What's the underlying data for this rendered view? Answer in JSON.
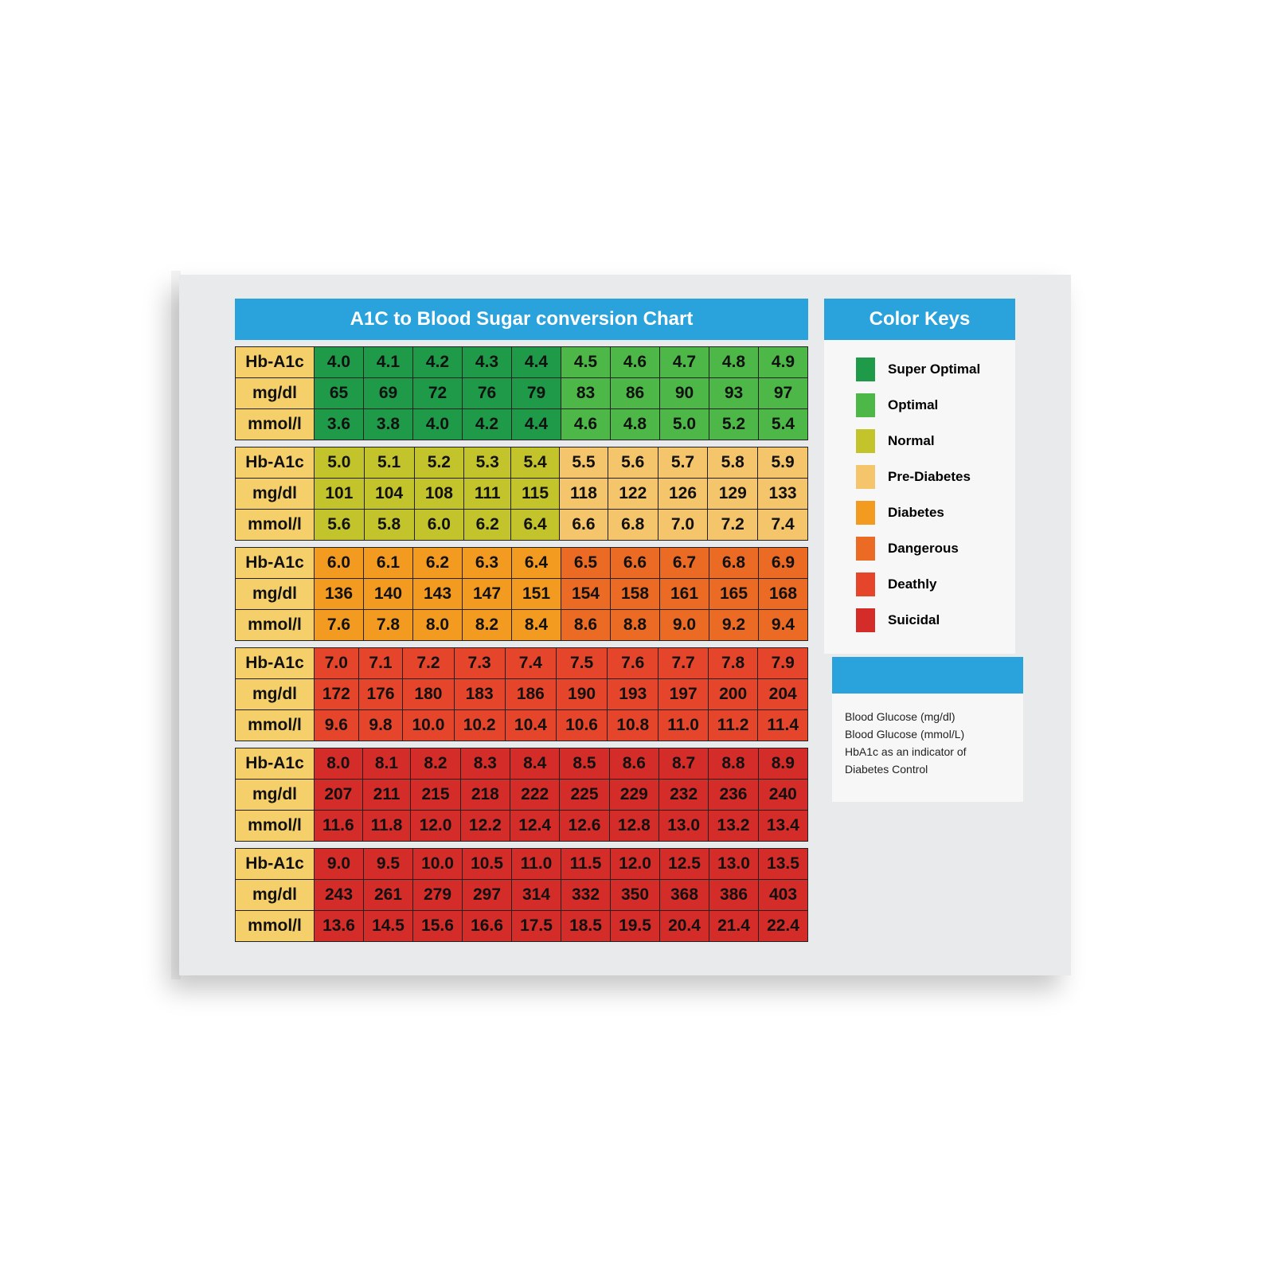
{
  "header": {
    "title": "A1C to Blood Sugar conversion Chart"
  },
  "table": {
    "blocks": [
      {
        "colors": [
          "#1f9a49",
          "#4db848"
        ],
        "rows": [
          {
            "label": "Hb-A1c",
            "cells": [
              "4.0",
              "4.1",
              "4.2",
              "4.3",
              "4.4",
              "4.5",
              "4.6",
              "4.7",
              "4.8",
              "4.9"
            ]
          },
          {
            "label": "mg/dl",
            "cells": [
              "65",
              "69",
              "72",
              "76",
              "79",
              "83",
              "86",
              "90",
              "93",
              "97"
            ]
          },
          {
            "label": "mmol/l",
            "cells": [
              "3.6",
              "3.8",
              "4.0",
              "4.2",
              "4.4",
              "4.6",
              "4.8",
              "5.0",
              "5.2",
              "5.4"
            ]
          }
        ]
      },
      {
        "colors": [
          "#c3c42c",
          "#f5c56c"
        ],
        "rows": [
          {
            "label": "Hb-A1c",
            "cells": [
              "5.0",
              "5.1",
              "5.2",
              "5.3",
              "5.4",
              "5.5",
              "5.6",
              "5.7",
              "5.8",
              "5.9"
            ]
          },
          {
            "label": "mg/dl",
            "cells": [
              "101",
              "104",
              "108",
              "111",
              "115",
              "118",
              "122",
              "126",
              "129",
              "133"
            ]
          },
          {
            "label": "mmol/l",
            "cells": [
              "5.6",
              "5.8",
              "6.0",
              "6.2",
              "6.4",
              "6.6",
              "6.8",
              "7.0",
              "7.2",
              "7.4"
            ]
          }
        ]
      },
      {
        "colors": [
          "#f39b20",
          "#ec6b24"
        ],
        "rows": [
          {
            "label": "Hb-A1c",
            "cells": [
              "6.0",
              "6.1",
              "6.2",
              "6.3",
              "6.4",
              "6.5",
              "6.6",
              "6.7",
              "6.8",
              "6.9"
            ]
          },
          {
            "label": "mg/dl",
            "cells": [
              "136",
              "140",
              "143",
              "147",
              "151",
              "154",
              "158",
              "161",
              "165",
              "168"
            ]
          },
          {
            "label": "mmol/l",
            "cells": [
              "7.6",
              "7.8",
              "8.0",
              "8.2",
              "8.4",
              "8.6",
              "8.8",
              "9.0",
              "9.2",
              "9.4"
            ]
          }
        ]
      },
      {
        "colors": [
          "#e5452b",
          "#e5452b"
        ],
        "rows": [
          {
            "label": "Hb-A1c",
            "cells": [
              "7.0",
              "7.1",
              "7.2",
              "7.3",
              "7.4",
              "7.5",
              "7.6",
              "7.7",
              "7.8",
              "7.9"
            ]
          },
          {
            "label": "mg/dl",
            "cells": [
              "172",
              "176",
              "180",
              "183",
              "186",
              "190",
              "193",
              "197",
              "200",
              "204"
            ]
          },
          {
            "label": "mmol/l",
            "cells": [
              "9.6",
              "9.8",
              "10.0",
              "10.2",
              "10.4",
              "10.6",
              "10.8",
              "11.0",
              "11.2",
              "11.4"
            ]
          }
        ]
      },
      {
        "colors": [
          "#d42c28",
          "#d42c28"
        ],
        "rows": [
          {
            "label": "Hb-A1c",
            "cells": [
              "8.0",
              "8.1",
              "8.2",
              "8.3",
              "8.4",
              "8.5",
              "8.6",
              "8.7",
              "8.8",
              "8.9"
            ]
          },
          {
            "label": "mg/dl",
            "cells": [
              "207",
              "211",
              "215",
              "218",
              "222",
              "225",
              "229",
              "232",
              "236",
              "240"
            ]
          },
          {
            "label": "mmol/l",
            "cells": [
              "11.6",
              "11.8",
              "12.0",
              "12.2",
              "12.4",
              "12.6",
              "12.8",
              "13.0",
              "13.2",
              "13.4"
            ]
          }
        ]
      },
      {
        "colors": [
          "#d42c28",
          "#d42c28"
        ],
        "rows": [
          {
            "label": "Hb-A1c",
            "cells": [
              "9.0",
              "9.5",
              "10.0",
              "10.5",
              "11.0",
              "11.5",
              "12.0",
              "12.5",
              "13.0",
              "13.5"
            ]
          },
          {
            "label": "mg/dl",
            "cells": [
              "243",
              "261",
              "279",
              "297",
              "314",
              "332",
              "350",
              "368",
              "386",
              "403"
            ]
          },
          {
            "label": "mmol/l",
            "cells": [
              "13.6",
              "14.5",
              "15.6",
              "16.6",
              "17.5",
              "18.5",
              "19.5",
              "20.4",
              "21.4",
              "22.4"
            ]
          }
        ]
      }
    ],
    "label_color": "#f5cf6a"
  },
  "legend": {
    "title": "Color Keys",
    "items": [
      {
        "label": "Super Optimal",
        "color": "#1f9a49"
      },
      {
        "label": "Optimal",
        "color": "#4db848"
      },
      {
        "label": "Normal",
        "color": "#c3c42c"
      },
      {
        "label": "Pre-Diabetes",
        "color": "#f5c56c"
      },
      {
        "label": "Diabetes",
        "color": "#f39b20"
      },
      {
        "label": "Dangerous",
        "color": "#ec6b24"
      },
      {
        "label": "Deathly",
        "color": "#e5452b"
      },
      {
        "label": "Suicidal",
        "color": "#d42c28"
      }
    ]
  },
  "info": {
    "lines": [
      "Blood Glucose (mg/dl)",
      "Blood Glucose (mmol/L)",
      "HbA1c as an indicator of Diabetes Control"
    ]
  }
}
